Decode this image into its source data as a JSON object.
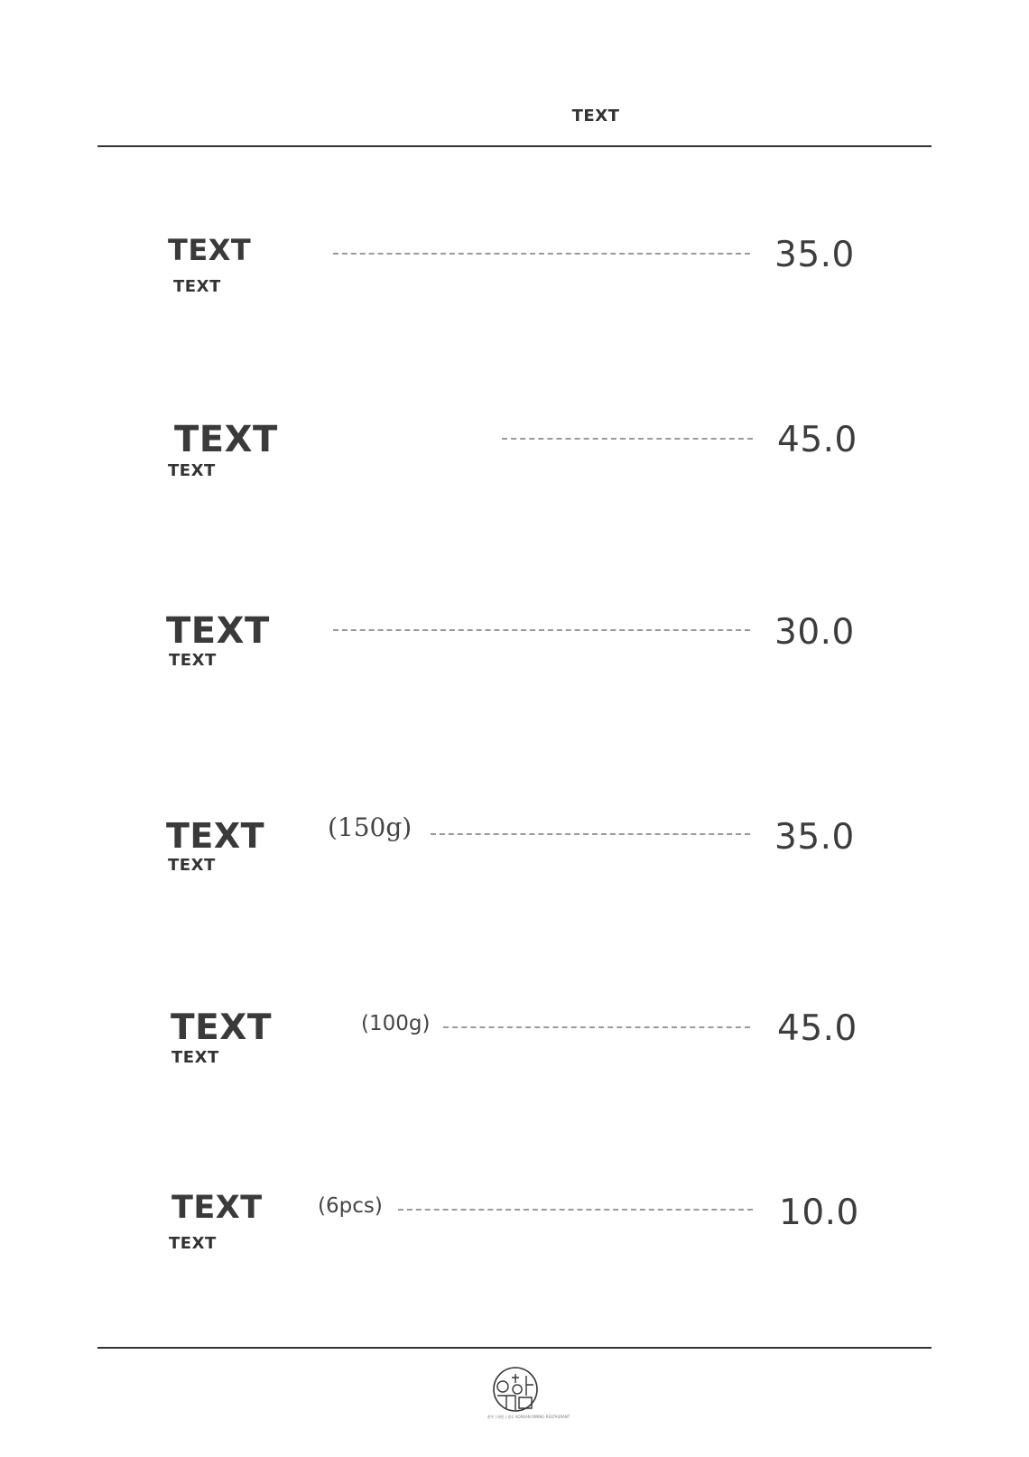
{
  "header": {
    "title": "TEXT"
  },
  "menu": {
    "items": [
      {
        "name": "TEXT",
        "subtitle": "TEXT",
        "quantity": "",
        "price": "35.0"
      },
      {
        "name": "TEXT",
        "subtitle": "TEXT",
        "quantity": "",
        "price": "45.0"
      },
      {
        "name": "TEXT",
        "subtitle": "TEXT",
        "quantity": "",
        "price": "30.0"
      },
      {
        "name": "TEXT",
        "subtitle": "TEXT",
        "quantity": "(150g)",
        "price": "35.0"
      },
      {
        "name": "TEXT",
        "subtitle": "TEXT",
        "quantity": "(100g)",
        "price": "45.0"
      },
      {
        "name": "TEXT",
        "subtitle": "TEXT",
        "quantity": "(6pcs)",
        "price": "10.0"
      }
    ]
  },
  "footer": {
    "logo_caption": "한우 | 와인 | 갈소 KOREAN DINING RESTAURANT"
  },
  "colors": {
    "text": "#3d3d3d",
    "rule": "#333333",
    "leader": "#9a9a9a"
  }
}
